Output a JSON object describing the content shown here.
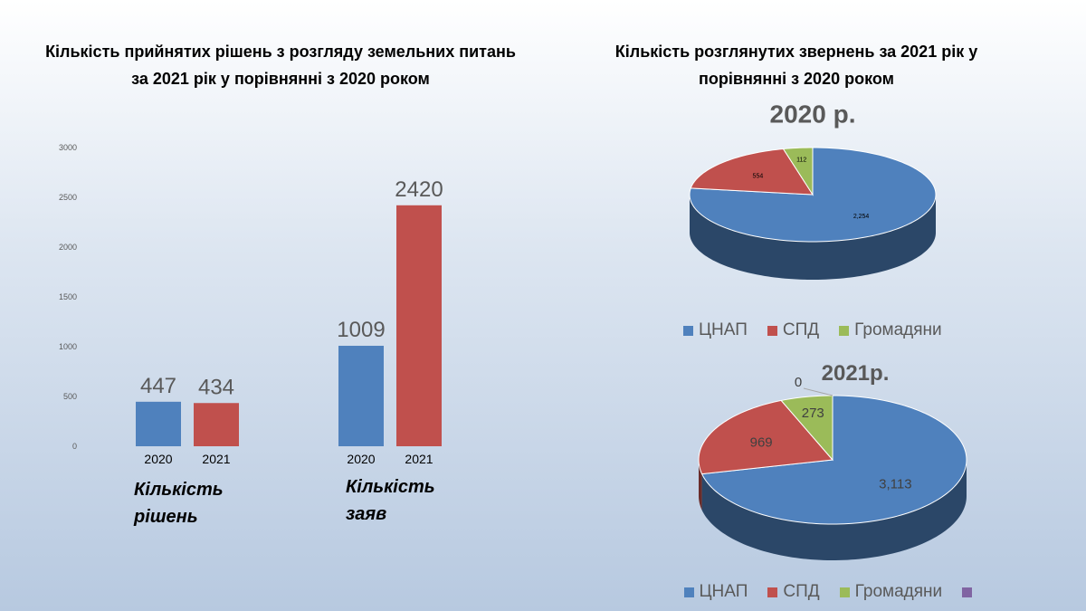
{
  "slide": {
    "right_title": "Кількість розглянутих звернень за 2021 рік у\nпорівнянні з 2020 роком"
  },
  "chart_data": [
    {
      "type": "bar",
      "title": "Кількість прийнятих рішень з розгляду земельних питань\nза 2021 рік у порівнянні з 2020 роком",
      "categories": [
        "Кількість рішень",
        "Кількість заяв"
      ],
      "series": [
        {
          "name": "2020",
          "color": "#4f81bd",
          "values": [
            447,
            1009
          ]
        },
        {
          "name": "2021",
          "color": "#c0504d",
          "values": [
            434,
            2420
          ]
        }
      ],
      "ylim": [
        0,
        3000
      ],
      "yticks": [
        0,
        500,
        1000,
        1500,
        2000,
        2500,
        3000
      ],
      "grid": false
    },
    {
      "type": "pie",
      "title": "2020 р.",
      "categories": [
        "ЦНАП",
        "СПД",
        "Громадяни"
      ],
      "values": [
        2254,
        554,
        112
      ],
      "value_labels": [
        "2,254",
        "554",
        "112"
      ],
      "colors": [
        "#4f81bd",
        "#c0504d",
        "#9bbb59"
      ]
    },
    {
      "type": "pie",
      "title": "2021р.",
      "categories": [
        "ЦНАП",
        "СПД",
        "Громадяни",
        null
      ],
      "values": [
        3113,
        969,
        273,
        0
      ],
      "value_labels": [
        "3,113",
        "969",
        "273",
        "0"
      ],
      "colors": [
        "#4f81bd",
        "#c0504d",
        "#9bbb59",
        "#8064a2"
      ]
    }
  ]
}
